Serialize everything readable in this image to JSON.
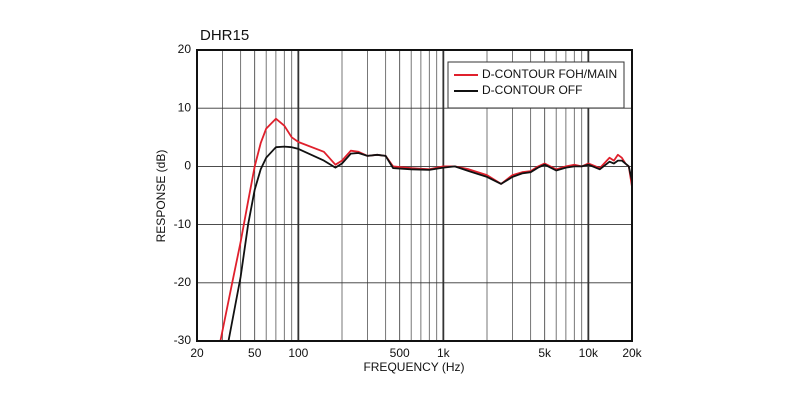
{
  "chart_data": {
    "type": "line",
    "title": "DHR15",
    "xlabel": "FREQUENCY (Hz)",
    "ylabel": "RESPONSE (dB)",
    "xscale": "log",
    "xlim": [
      20,
      20000
    ],
    "ylim": [
      -30,
      20
    ],
    "xticks": [
      20,
      50,
      100,
      500,
      {
        "value": 1000,
        "label": "1k"
      },
      {
        "value": 5000,
        "label": "5k"
      },
      {
        "value": 10000,
        "label": "10k"
      },
      {
        "value": 20000,
        "label": "20k"
      }
    ],
    "xgrid_minor": [
      30,
      40,
      60,
      70,
      80,
      90,
      200,
      300,
      400,
      600,
      700,
      800,
      900,
      2000,
      3000,
      4000,
      6000,
      7000,
      8000,
      9000
    ],
    "yticks": [
      20,
      10,
      0,
      -10,
      -20,
      -30
    ],
    "grid": true,
    "legend": "upper right",
    "series": [
      {
        "name": "D-CONTOUR FOH/MAIN",
        "color": "#e0202c",
        "x": [
          29,
          35,
          40,
          45,
          50,
          55,
          60,
          70,
          80,
          90,
          100,
          150,
          180,
          200,
          230,
          260,
          300,
          350,
          400,
          450,
          600,
          800,
          1000,
          1200,
          1500,
          2000,
          2500,
          3000,
          3500,
          4000,
          4500,
          5000,
          6000,
          7000,
          8000,
          9000,
          10000,
          12000,
          14000,
          15000,
          16000,
          17000,
          18000,
          19000,
          20000
        ],
        "values": [
          -30,
          -20,
          -13,
          -6,
          0,
          4,
          6.5,
          8.2,
          7,
          5,
          4.2,
          2.5,
          0.3,
          1,
          2.7,
          2.5,
          1.8,
          2,
          1.8,
          0,
          -0.3,
          -0.5,
          0,
          0,
          -0.5,
          -1.5,
          -3,
          -1.5,
          -1,
          -0.8,
          0,
          0.5,
          -0.5,
          0,
          0.3,
          0,
          0.5,
          -0.3,
          1.5,
          1,
          2,
          1.5,
          0.5,
          0,
          -3.5
        ]
      },
      {
        "name": "D-CONTOUR OFF",
        "color": "#111111",
        "x": [
          33,
          40,
          45,
          50,
          55,
          60,
          70,
          80,
          90,
          100,
          150,
          180,
          200,
          230,
          260,
          300,
          350,
          400,
          450,
          600,
          800,
          1000,
          1200,
          1500,
          2000,
          2500,
          3000,
          3500,
          4000,
          4500,
          5000,
          6000,
          7000,
          8000,
          9000,
          10000,
          12000,
          14000,
          15000,
          16000,
          17000,
          18000,
          19000,
          20000
        ],
        "values": [
          -30,
          -19,
          -10,
          -4,
          -0.5,
          1.5,
          3.3,
          3.4,
          3.3,
          3,
          1,
          -0.2,
          0.5,
          2.2,
          2.3,
          1.8,
          2,
          1.8,
          -0.3,
          -0.5,
          -0.6,
          -0.2,
          0,
          -0.8,
          -1.8,
          -3,
          -1.8,
          -1.2,
          -1,
          -0.2,
          0.3,
          -0.7,
          -0.2,
          0,
          0,
          0.3,
          -0.5,
          0.8,
          0.5,
          1,
          1,
          0.5,
          0,
          -2.5
        ]
      }
    ]
  }
}
